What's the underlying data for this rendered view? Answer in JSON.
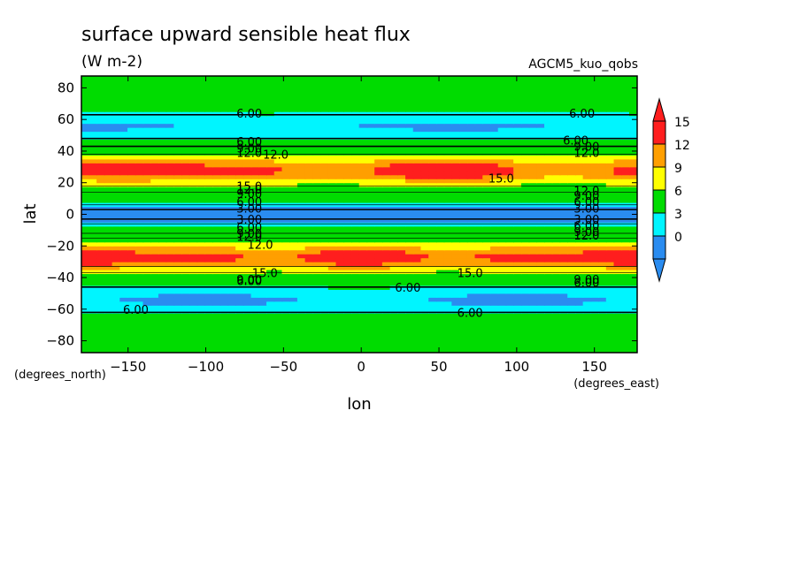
{
  "chart_data": {
    "type": "heatmap",
    "title": "surface upward sensible heat flux",
    "units": "(W m-2)",
    "dataset": "AGCM5_kuo_qobs",
    "xlabel": "lon",
    "ylabel": "lat",
    "x_units": "(degrees_east)",
    "y_units": "(degrees_north)",
    "xlim": [
      -180,
      177.5
    ],
    "ylim": [
      -87.5,
      87.5
    ],
    "xticks": [
      -150,
      -100,
      -50,
      0,
      50,
      100,
      150
    ],
    "yticks": [
      -80,
      -60,
      -40,
      -20,
      0,
      20,
      40,
      60,
      80
    ],
    "xtick_labels": [
      "−150",
      "−100",
      "−50",
      "0",
      "50",
      "100",
      "150"
    ],
    "ytick_labels": [
      "−80",
      "−60",
      "−40",
      "−20",
      "0",
      "20",
      "40",
      "60",
      "80"
    ],
    "colorbar": {
      "levels": [
        0,
        3,
        6,
        9,
        12,
        15
      ],
      "labels": [
        "0",
        "3",
        "6",
        "9",
        "12",
        "15"
      ],
      "colors": [
        "#2a8cf0",
        "#00f5ff",
        "#00dc00",
        "#ffff00",
        "#ff9f00",
        "#ff1e1e"
      ],
      "extend": "both"
    },
    "bands": [
      {
        "lat": [
          -87.5,
          -62
        ],
        "level": "6-9"
      },
      {
        "lat": [
          -62,
          -46
        ],
        "level": "3-6"
      },
      {
        "lat": [
          -46,
          -37
        ],
        "level": "6-9"
      },
      {
        "lat": [
          -37,
          -33
        ],
        "level": "9-12"
      },
      {
        "lat": [
          -33,
          -15
        ],
        "level": "12-15 / >15"
      },
      {
        "lat": [
          -15,
          -12
        ],
        "level": "9-12"
      },
      {
        "lat": [
          -12,
          -6
        ],
        "level": "6-9"
      },
      {
        "lat": [
          -6,
          -3
        ],
        "level": "3-6"
      },
      {
        "lat": [
          -3,
          3
        ],
        "level": "0-3"
      },
      {
        "lat": [
          3,
          6
        ],
        "level": "3-6"
      },
      {
        "lat": [
          6,
          14
        ],
        "level": "6-9"
      },
      {
        "lat": [
          14,
          18
        ],
        "level": "9-12"
      },
      {
        "lat": [
          18,
          38
        ],
        "level": "12-15 / >15"
      },
      {
        "lat": [
          38,
          43
        ],
        "level": "9-12"
      },
      {
        "lat": [
          43,
          48
        ],
        "level": "6-9"
      },
      {
        "lat": [
          48,
          63
        ],
        "level": "3-6"
      },
      {
        "lat": [
          63,
          87.5
        ],
        "level": "6-9"
      }
    ],
    "contour_labels": [
      {
        "text": "6.00",
        "lon": -72,
        "lat": 64
      },
      {
        "text": "6.00",
        "lon": 142,
        "lat": 64
      },
      {
        "text": "6.00",
        "lon": -72,
        "lat": 46
      },
      {
        "text": "6.00",
        "lon": 138,
        "lat": 47
      },
      {
        "text": "9.00",
        "lon": -72,
        "lat": 42
      },
      {
        "text": "9.00",
        "lon": 145,
        "lat": 43
      },
      {
        "text": "12.0",
        "lon": -72,
        "lat": 39
      },
      {
        "text": "12.0",
        "lon": -55,
        "lat": 38
      },
      {
        "text": "12.0",
        "lon": 145,
        "lat": 39
      },
      {
        "text": "15.0",
        "lon": 90,
        "lat": 23
      },
      {
        "text": "15.0",
        "lon": -72,
        "lat": 18
      },
      {
        "text": "12.0",
        "lon": -72,
        "lat": 16
      },
      {
        "text": "12.0",
        "lon": 145,
        "lat": 15
      },
      {
        "text": "9.00",
        "lon": -72,
        "lat": 13
      },
      {
        "text": "9.00",
        "lon": 145,
        "lat": 12
      },
      {
        "text": "6.00",
        "lon": -72,
        "lat": 8
      },
      {
        "text": "6.00",
        "lon": 145,
        "lat": 8
      },
      {
        "text": "3.00",
        "lon": -72,
        "lat": 4
      },
      {
        "text": "3.00",
        "lon": 145,
        "lat": 4
      },
      {
        "text": "3.00",
        "lon": -72,
        "lat": -3
      },
      {
        "text": "3.00",
        "lon": 145,
        "lat": -3
      },
      {
        "text": "6.00",
        "lon": -72,
        "lat": -8
      },
      {
        "text": "6.00",
        "lon": 145,
        "lat": -7
      },
      {
        "text": "9.00",
        "lon": -72,
        "lat": -12
      },
      {
        "text": "9.00",
        "lon": 145,
        "lat": -11
      },
      {
        "text": "12.0",
        "lon": -72,
        "lat": -14
      },
      {
        "text": "12.0",
        "lon": 145,
        "lat": -13
      },
      {
        "text": "12.0",
        "lon": -65,
        "lat": -19
      },
      {
        "text": "15.0",
        "lon": -62,
        "lat": -37
      },
      {
        "text": "15.0",
        "lon": 70,
        "lat": -37
      },
      {
        "text": "9.00",
        "lon": -72,
        "lat": -41
      },
      {
        "text": "9.00",
        "lon": 145,
        "lat": -41
      },
      {
        "text": "6.00",
        "lon": -72,
        "lat": -42
      },
      {
        "text": "6.00",
        "lon": 145,
        "lat": -43
      },
      {
        "text": "6.00",
        "lon": 30,
        "lat": -46
      },
      {
        "text": "6.00",
        "lon": -145,
        "lat": -60
      },
      {
        "text": "6.00",
        "lon": 70,
        "lat": -62
      }
    ],
    "grid": false,
    "legend_position": "right"
  }
}
